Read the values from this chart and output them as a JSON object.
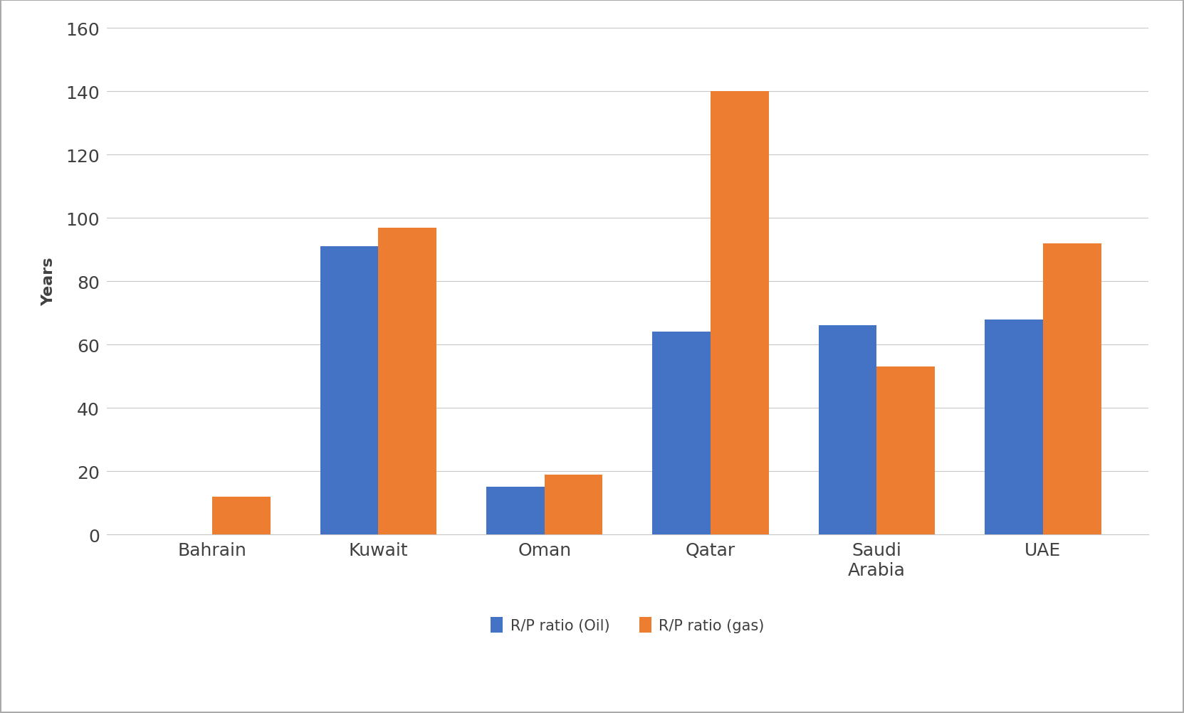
{
  "categories": [
    "Bahrain",
    "Kuwait",
    "Oman",
    "Qatar",
    "Saudi\nArabia",
    "UAE"
  ],
  "oil_values": [
    0,
    91,
    15,
    64,
    66,
    68
  ],
  "gas_values": [
    12,
    97,
    19,
    140,
    53,
    92
  ],
  "oil_color": "#4472C4",
  "gas_color": "#ED7D31",
  "ylabel": "Years",
  "ylim": [
    0,
    160
  ],
  "yticks": [
    0,
    20,
    40,
    60,
    80,
    100,
    120,
    140,
    160
  ],
  "legend_labels": [
    "R/P ratio (Oil)",
    "R/P ratio (gas)"
  ],
  "background_color": "#FFFFFF",
  "bar_width": 0.35,
  "grid_color": "#C8C8C8",
  "ylabel_fontsize": 16,
  "tick_fontsize": 18,
  "legend_fontsize": 15,
  "border_color": "#AAAAAA"
}
